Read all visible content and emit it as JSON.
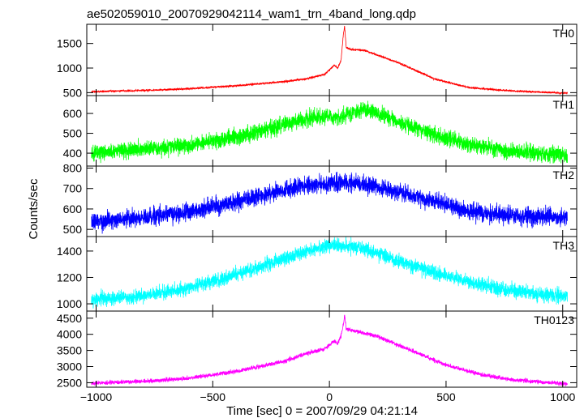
{
  "chart_data": {
    "type": "line",
    "title": "ae502059010_20070929042114_wam1_trn_4band_long.qdp",
    "xlabel": "Time [sec] 0 = 2007/09/29 04:21:14",
    "ylabel": "Counts/sec",
    "xlim": [
      -1040,
      1060
    ],
    "x_ticks": [
      -1000,
      -500,
      0,
      500,
      1000
    ],
    "grid": false,
    "panels": [
      {
        "name": "TH0",
        "color": "#ff0000",
        "ylim": [
          440,
          1890
        ],
        "y_ticks": [
          500,
          1000,
          1500
        ],
        "noise": 14,
        "profile": [
          [
            -1020,
            520
          ],
          [
            -800,
            545
          ],
          [
            -600,
            580
          ],
          [
            -400,
            640
          ],
          [
            -200,
            720
          ],
          [
            -100,
            780
          ],
          [
            -20,
            870
          ],
          [
            0,
            960
          ],
          [
            20,
            1060
          ],
          [
            35,
            1000
          ],
          [
            50,
            1160
          ],
          [
            60,
            1700
          ],
          [
            65,
            1850
          ],
          [
            72,
            1420
          ],
          [
            90,
            1380
          ],
          [
            150,
            1360
          ],
          [
            300,
            1100
          ],
          [
            450,
            780
          ],
          [
            600,
            600
          ],
          [
            800,
            530
          ],
          [
            1020,
            490
          ]
        ]
      },
      {
        "name": "TH1",
        "color": "#00ff00",
        "ylim": [
          335,
          690
        ],
        "y_ticks": [
          400,
          500,
          600
        ],
        "noise": 28,
        "profile": [
          [
            -1020,
            400
          ],
          [
            -800,
            420
          ],
          [
            -600,
            445
          ],
          [
            -400,
            480
          ],
          [
            -200,
            540
          ],
          [
            -100,
            575
          ],
          [
            0,
            585
          ],
          [
            50,
            575
          ],
          [
            100,
            610
          ],
          [
            160,
            620
          ],
          [
            250,
            580
          ],
          [
            400,
            510
          ],
          [
            600,
            440
          ],
          [
            800,
            405
          ],
          [
            1020,
            390
          ]
        ]
      },
      {
        "name": "TH2",
        "color": "#0000ff",
        "ylim": [
          465,
          810
        ],
        "y_ticks": [
          500,
          600,
          700,
          800
        ],
        "noise": 30,
        "profile": [
          [
            -1020,
            540
          ],
          [
            -800,
            555
          ],
          [
            -600,
            585
          ],
          [
            -400,
            635
          ],
          [
            -200,
            690
          ],
          [
            -100,
            715
          ],
          [
            0,
            725
          ],
          [
            100,
            730
          ],
          [
            200,
            710
          ],
          [
            400,
            650
          ],
          [
            600,
            590
          ],
          [
            800,
            565
          ],
          [
            1020,
            560
          ]
        ]
      },
      {
        "name": "TH3",
        "color": "#00ffff",
        "ylim": [
          945,
          1510
        ],
        "y_ticks": [
          1000,
          1200,
          1400
        ],
        "noise": 38,
        "profile": [
          [
            -1020,
            1030
          ],
          [
            -800,
            1060
          ],
          [
            -600,
            1120
          ],
          [
            -400,
            1220
          ],
          [
            -200,
            1340
          ],
          [
            -50,
            1420
          ],
          [
            0,
            1440
          ],
          [
            50,
            1440
          ],
          [
            150,
            1420
          ],
          [
            300,
            1320
          ],
          [
            500,
            1210
          ],
          [
            700,
            1120
          ],
          [
            900,
            1070
          ],
          [
            1020,
            1060
          ]
        ]
      },
      {
        "name": "TH0123",
        "color": "#ff00ff",
        "ylim": [
          2360,
          4720
        ],
        "y_ticks": [
          2500,
          3000,
          3500,
          4000,
          4500
        ],
        "noise": 45,
        "profile": [
          [
            -1020,
            2480
          ],
          [
            -800,
            2540
          ],
          [
            -600,
            2640
          ],
          [
            -400,
            2850
          ],
          [
            -200,
            3150
          ],
          [
            -100,
            3400
          ],
          [
            -20,
            3550
          ],
          [
            0,
            3680
          ],
          [
            20,
            3800
          ],
          [
            35,
            3700
          ],
          [
            50,
            3950
          ],
          [
            60,
            4300
          ],
          [
            65,
            4600
          ],
          [
            72,
            4150
          ],
          [
            100,
            4120
          ],
          [
            200,
            3950
          ],
          [
            350,
            3500
          ],
          [
            500,
            3050
          ],
          [
            650,
            2750
          ],
          [
            800,
            2580
          ],
          [
            1020,
            2460
          ]
        ]
      }
    ]
  }
}
